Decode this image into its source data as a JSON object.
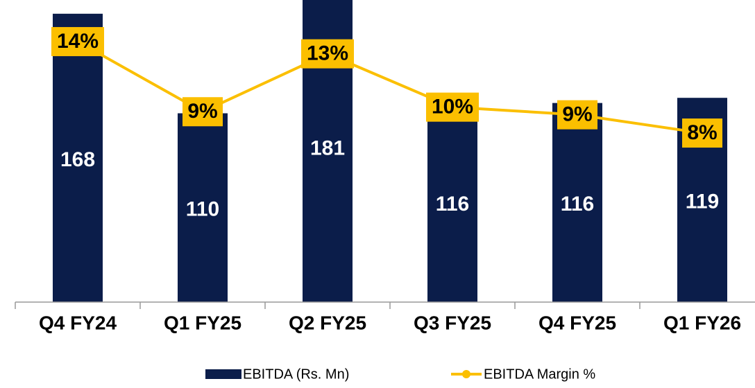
{
  "chart_data": {
    "type": "bar",
    "categories": [
      "Q4 FY24",
      "Q1 FY25",
      "Q2 FY25",
      "Q3 FY25",
      "Q4 FY25",
      "Q1 FY26"
    ],
    "series": [
      {
        "name": "EBITDA (Rs. Mn)",
        "type": "bar",
        "color": "#0b1d4a",
        "values": [
          168,
          110,
          181,
          116,
          116,
          119
        ]
      },
      {
        "name": "EBITDA Margin %",
        "type": "line",
        "axis": "y2",
        "color": "#fbbf00",
        "values": [
          14.0,
          9.4,
          13.2,
          9.7,
          9.2,
          8.0
        ],
        "value_labels": [
          "14%",
          "9%",
          "13%",
          "10%",
          "9%",
          "8%"
        ]
      }
    ],
    "ylim": [
      0,
      176
    ],
    "y2lim": [
      -3.09,
      16.73
    ],
    "legend": "bottom"
  }
}
